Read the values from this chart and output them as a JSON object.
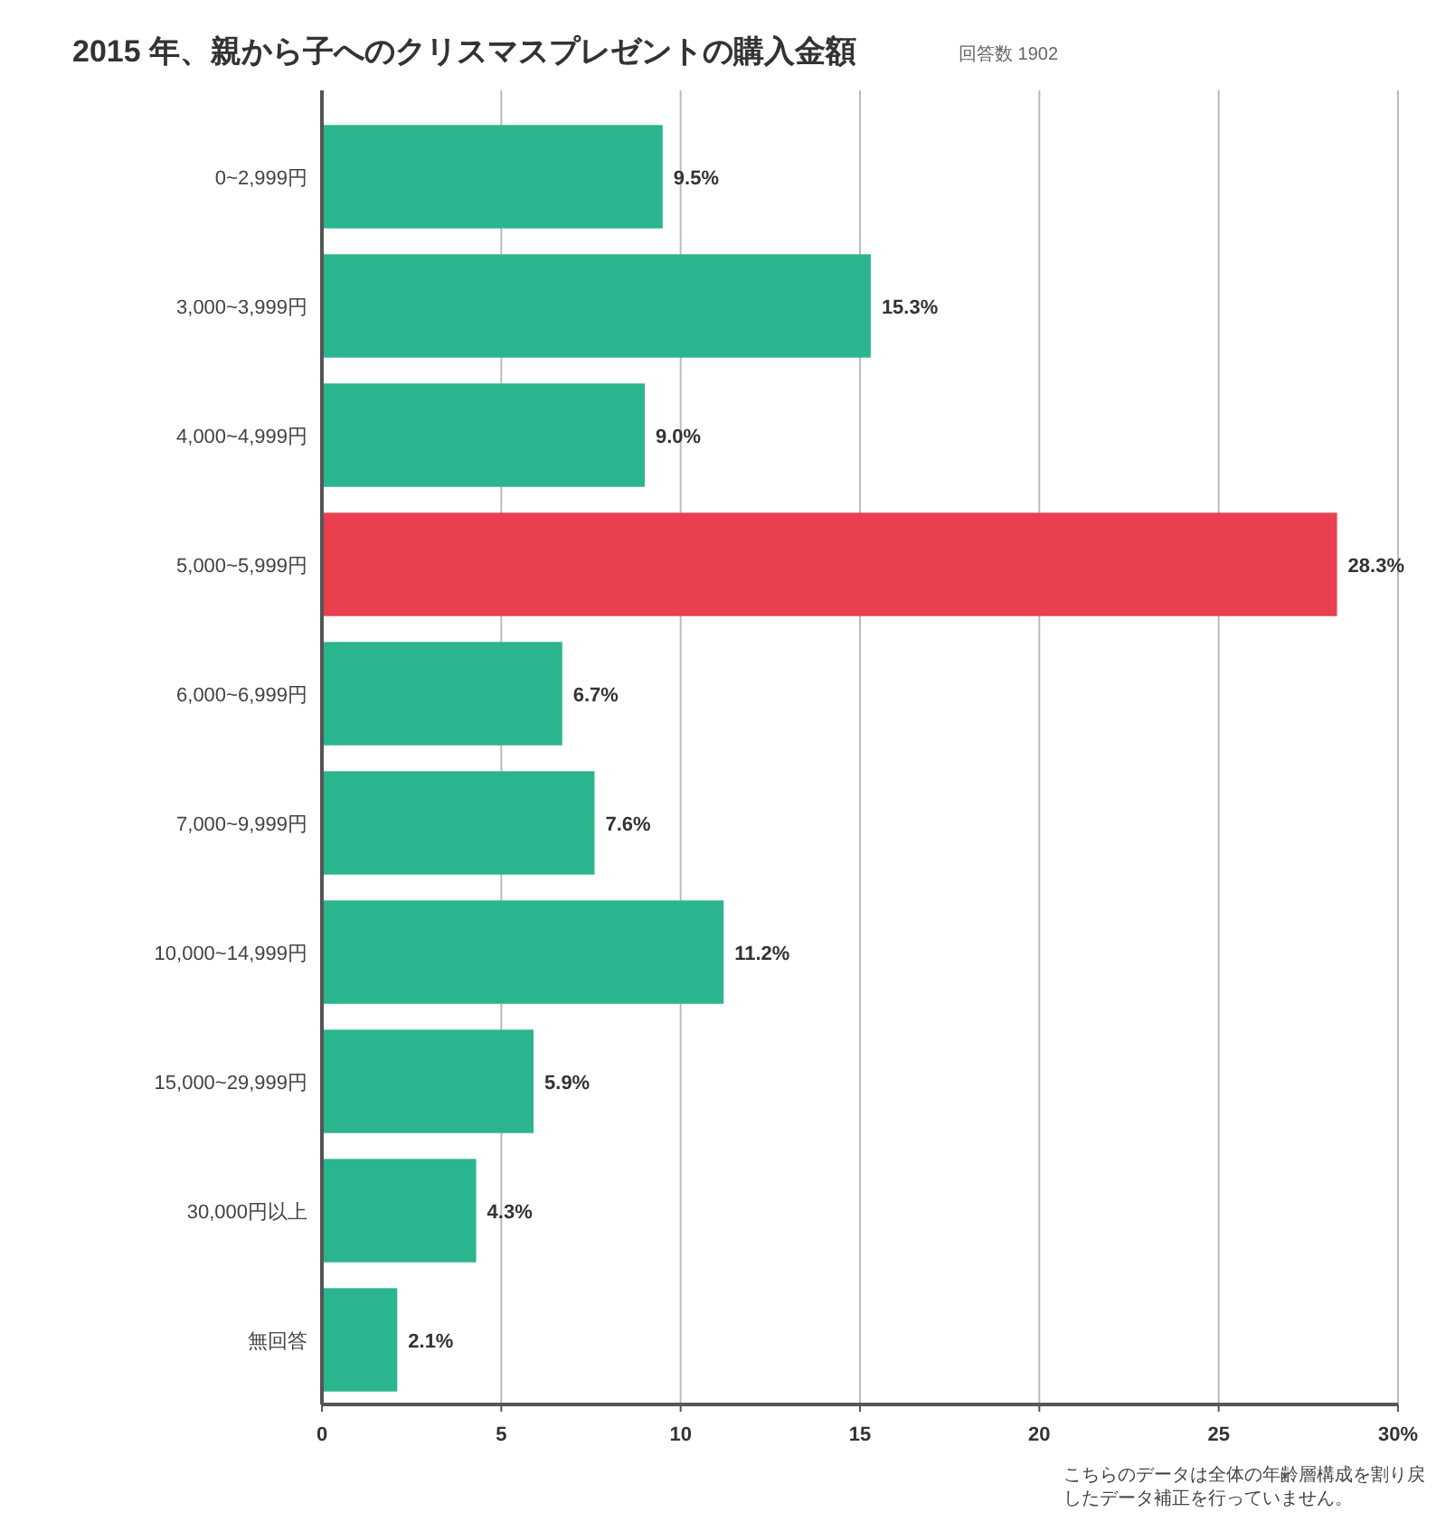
{
  "chart_data": {
    "type": "bar",
    "orientation": "horizontal",
    "title": "2015 年、親から子へのクリスマスプレゼントの購入金額",
    "subtitle": "回答数 1902",
    "categories": [
      "0~2,999円",
      "3,000~3,999円",
      "4,000~4,999円",
      "5,000~5,999円",
      "6,000~6,999円",
      "7,000~9,999円",
      "10,000~14,999円",
      "15,000~29,999円",
      "30,000円以上",
      "無回答"
    ],
    "values": [
      9.5,
      15.3,
      9.0,
      28.3,
      6.7,
      7.6,
      11.2,
      5.9,
      4.3,
      2.1
    ],
    "colors": [
      "#2bb58f",
      "#2bb58f",
      "#2bb58f",
      "#e8404f",
      "#2bb58f",
      "#2bb58f",
      "#2bb58f",
      "#2bb58f",
      "#2bb58f",
      "#2bb58f"
    ],
    "value_labels": [
      "9.5%",
      "15.3%",
      "9.0%",
      "28.3%",
      "6.7%",
      "7.6%",
      "11.2%",
      "5.9%",
      "4.3%",
      "2.1%"
    ],
    "xlim": [
      0,
      30
    ],
    "xticks": [
      0,
      5,
      10,
      15,
      20,
      25,
      {
        "value": 30,
        "label": "30%"
      }
    ],
    "grid": "x",
    "annotations": [
      "こちらのデータは全体の年齢層構成を割り戻したデータ補正を行っていません。"
    ]
  }
}
